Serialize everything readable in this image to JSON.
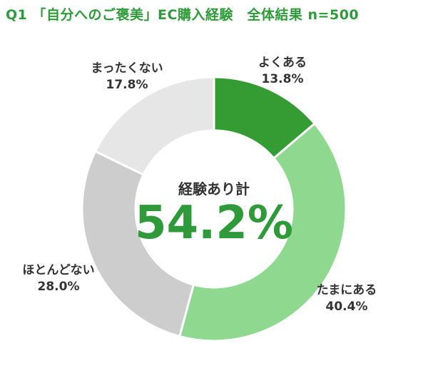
{
  "chart_data": {
    "type": "pie",
    "title": "Q1 「自分へのご褒美」EC購入経験　全体結果 n=500",
    "center_label": "経験あり計",
    "center_value": "54.2%",
    "slices": [
      {
        "label": "よくある",
        "value": 13.8,
        "value_text": "13.8%",
        "color": "#349c33"
      },
      {
        "label": "たまにある",
        "value": 40.4,
        "value_text": "40.4%",
        "color": "#8fd88f"
      },
      {
        "label": "ほとんどない",
        "value": 28.0,
        "value_text": "28.0%",
        "color": "#cdcdcd"
      },
      {
        "label": "まったくない",
        "value": 17.8,
        "value_text": "17.8%",
        "color": "#e6e6e6"
      }
    ],
    "colors": {
      "title": "#2e9a3a",
      "center_value": "#2e9a3a",
      "label_text": "#333333"
    }
  }
}
